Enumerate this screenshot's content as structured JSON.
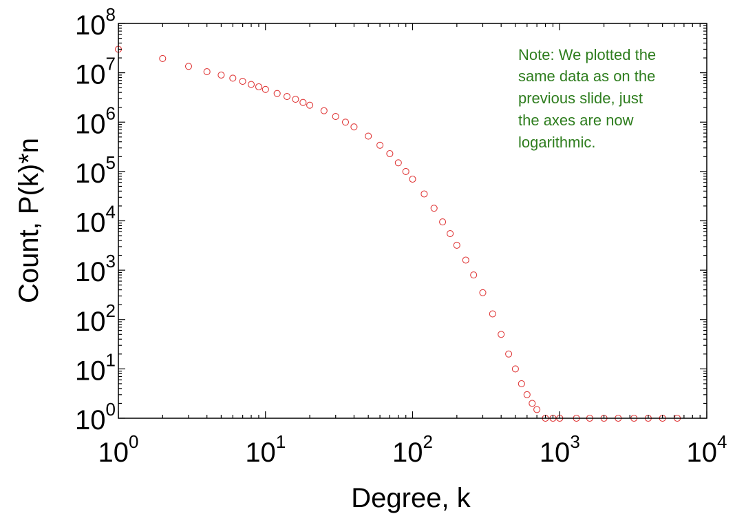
{
  "chart_data": {
    "type": "scatter",
    "title": "",
    "xlabel": "Degree, k",
    "ylabel": "Count, P(k)*n",
    "xscale": "log",
    "yscale": "log",
    "xlim": [
      1,
      10000
    ],
    "ylim": [
      1,
      100000000
    ],
    "x_tick_values": [
      1,
      10,
      100,
      1000,
      10000
    ],
    "x_tick_labels": [
      {
        "base": "10",
        "exp": "0"
      },
      {
        "base": "10",
        "exp": "1"
      },
      {
        "base": "10",
        "exp": "2"
      },
      {
        "base": "10",
        "exp": "3"
      },
      {
        "base": "10",
        "exp": "4"
      }
    ],
    "y_tick_values": [
      1,
      10,
      100,
      1000,
      10000,
      100000,
      1000000,
      10000000,
      100000000
    ],
    "y_tick_labels": [
      {
        "base": "10",
        "exp": "0"
      },
      {
        "base": "10",
        "exp": "1"
      },
      {
        "base": "10",
        "exp": "2"
      },
      {
        "base": "10",
        "exp": "3"
      },
      {
        "base": "10",
        "exp": "4"
      },
      {
        "base": "10",
        "exp": "5"
      },
      {
        "base": "10",
        "exp": "6"
      },
      {
        "base": "10",
        "exp": "7"
      },
      {
        "base": "10",
        "exp": "8"
      }
    ],
    "grid": false,
    "marker": "open-circle",
    "marker_color": "#e03a3a",
    "series": [
      {
        "points": [
          [
            1,
            30000000
          ],
          [
            2,
            19500000
          ],
          [
            3,
            13500000
          ],
          [
            4,
            10500000
          ],
          [
            5,
            9000000
          ],
          [
            6,
            7800000
          ],
          [
            7,
            6700000
          ],
          [
            8,
            5800000
          ],
          [
            9,
            5200000
          ],
          [
            10,
            4600000
          ],
          [
            12,
            3800000
          ],
          [
            14,
            3300000
          ],
          [
            16,
            2900000
          ],
          [
            18,
            2500000
          ],
          [
            20,
            2200000
          ],
          [
            25,
            1700000
          ],
          [
            30,
            1300000
          ],
          [
            35,
            1000000
          ],
          [
            40,
            800000
          ],
          [
            50,
            520000
          ],
          [
            60,
            340000
          ],
          [
            70,
            230000
          ],
          [
            80,
            150000
          ],
          [
            90,
            100000
          ],
          [
            100,
            70000
          ],
          [
            120,
            35000
          ],
          [
            140,
            18000
          ],
          [
            160,
            9500
          ],
          [
            180,
            5500
          ],
          [
            200,
            3200
          ],
          [
            230,
            1600
          ],
          [
            260,
            800
          ],
          [
            300,
            350
          ],
          [
            350,
            130
          ],
          [
            400,
            50
          ],
          [
            450,
            20
          ],
          [
            500,
            10
          ],
          [
            550,
            5
          ],
          [
            600,
            3
          ],
          [
            650,
            2
          ],
          [
            700,
            1.5
          ],
          [
            800,
            1
          ],
          [
            900,
            1
          ],
          [
            1000,
            1
          ],
          [
            1300,
            1
          ],
          [
            1600,
            1
          ],
          [
            2000,
            1
          ],
          [
            2500,
            1
          ],
          [
            3200,
            1
          ],
          [
            4000,
            1
          ],
          [
            5000,
            1
          ],
          [
            6300,
            1
          ]
        ]
      }
    ]
  },
  "note": {
    "lines": [
      "Note: We plotted the",
      "same data as on the",
      "previous slide, just",
      "the axes are now",
      "logarithmic."
    ],
    "color": "#2e7d1e"
  }
}
